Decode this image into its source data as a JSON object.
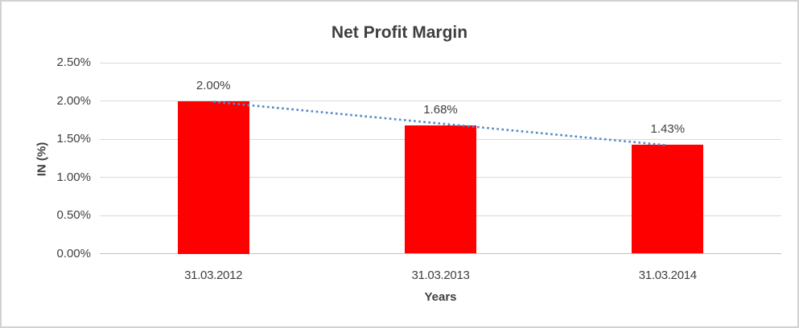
{
  "chart_data": {
    "type": "bar",
    "title": "Net Profit Margin",
    "xlabel": "Years",
    "ylabel": "IN (%)",
    "categories": [
      "31.03.2012",
      "31.03.2013",
      "31.03.2014"
    ],
    "values": [
      2.0,
      1.68,
      1.43
    ],
    "data_labels": [
      "2.00%",
      "1.68%",
      "1.43%"
    ],
    "yticks": {
      "values": [
        0,
        0.5,
        1.0,
        1.5,
        2.0,
        2.5
      ],
      "labels": [
        "0.00%",
        "0.50%",
        "1.00%",
        "1.50%",
        "2.00%",
        "2.50%"
      ]
    },
    "ylim": [
      0,
      2.5
    ],
    "grid": true,
    "legend": false,
    "trendline": {
      "type": "linear",
      "style": "dotted"
    },
    "colors": {
      "bar": "#ff0000",
      "trendline": "#5089c8",
      "text": "#3f3f3f",
      "gridline": "#d9d9d9",
      "baseline": "#c0c0c0"
    }
  }
}
